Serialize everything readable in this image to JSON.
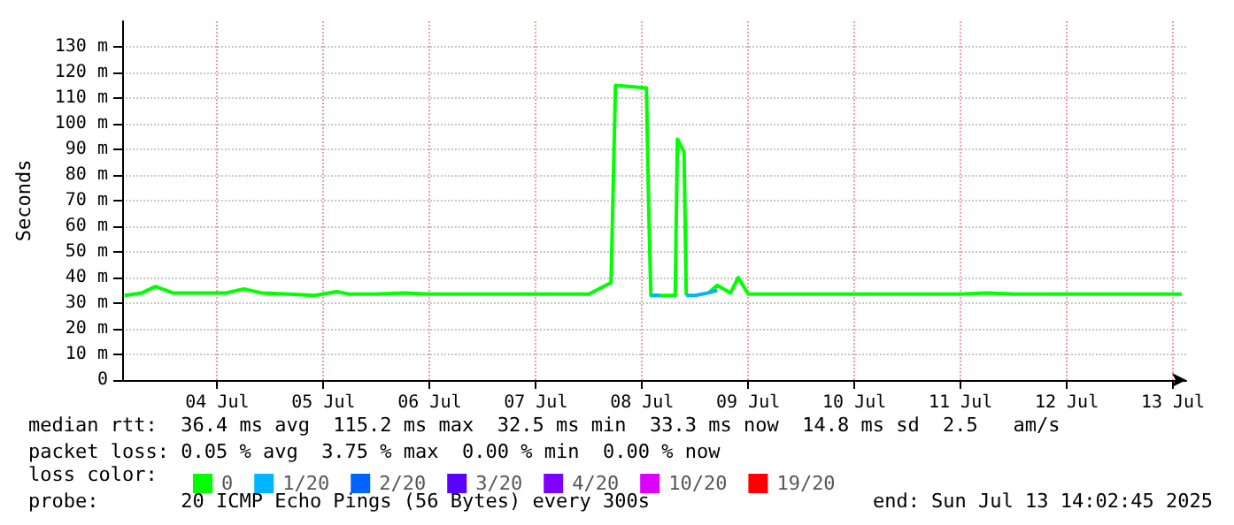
{
  "chart_data": {
    "type": "line",
    "ylabel": "Seconds",
    "legend_title": "loss color:",
    "legend": "bottom",
    "grid": true,
    "marker": "none",
    "line_style": "solid",
    "x": [
      "2025-07-03T15:00",
      "2025-07-03T19:00",
      "2025-07-03T22:00",
      "2025-07-04T02:00",
      "2025-07-04T08:00",
      "2025-07-04T14:00",
      "2025-07-04T18:00",
      "2025-07-04T22:00",
      "2025-07-05T04:00",
      "2025-07-05T10:00",
      "2025-07-05T15:00",
      "2025-07-05T18:00",
      "2025-07-06T00:00",
      "2025-07-06T06:00",
      "2025-07-06T12:00",
      "2025-07-06T18:00",
      "2025-07-07T00:00",
      "2025-07-07T06:00",
      "2025-07-07T12:00",
      "2025-07-07T18:00",
      "2025-07-08T00:00",
      "2025-07-08T05:00",
      "2025-07-08T06:00",
      "2025-07-08T13:00",
      "2025-07-08T13:30",
      "2025-07-08T14:00",
      "2025-07-08T16:00",
      "2025-07-08T19:30",
      "2025-07-08T20:00",
      "2025-07-08T21:30",
      "2025-07-08T22:00",
      "2025-07-09T00:00",
      "2025-07-09T03:00",
      "2025-07-09T05:00",
      "2025-07-09T08:00",
      "2025-07-09T09:45",
      "2025-07-09T12:00",
      "2025-07-09T18:00",
      "2025-07-10T00:00",
      "2025-07-10T06:00",
      "2025-07-10T12:00",
      "2025-07-10T18:00",
      "2025-07-11T00:00",
      "2025-07-11T06:00",
      "2025-07-11T12:00",
      "2025-07-11T18:00",
      "2025-07-12T00:00",
      "2025-07-12T06:00",
      "2025-07-12T12:00",
      "2025-07-12T18:00",
      "2025-07-13T00:00",
      "2025-07-13T06:00",
      "2025-07-13T14:00"
    ],
    "series": [
      {
        "name": "0",
        "color": "#00ff00",
        "values": [
          33,
          34,
          36.5,
          34,
          34,
          34,
          35.5,
          34,
          33.5,
          33,
          34.5,
          33.5,
          33.5,
          34,
          33.5,
          33.5,
          33.5,
          33.5,
          33.5,
          33.5,
          33.5,
          38,
          115,
          114,
          68,
          33,
          33,
          33,
          94,
          89,
          33,
          null,
          34,
          37,
          34,
          40,
          33.5,
          33.5,
          33.5,
          33.5,
          33.5,
          33.5,
          33.5,
          33.5,
          33.5,
          34,
          33.5,
          33.5,
          33.5,
          33.5,
          33.5,
          33.5,
          33.5
        ]
      },
      {
        "name": "1/20",
        "color": "#00b4ff",
        "values": [
          null,
          null,
          null,
          null,
          null,
          null,
          null,
          null,
          null,
          null,
          null,
          null,
          null,
          null,
          null,
          null,
          null,
          null,
          null,
          null,
          null,
          null,
          null,
          null,
          null,
          33,
          33,
          null,
          null,
          null,
          33,
          33,
          34,
          35,
          null,
          null,
          null,
          null,
          null,
          null,
          null,
          null,
          null,
          null,
          null,
          null,
          null,
          null,
          null,
          null,
          null,
          null,
          null
        ]
      },
      {
        "name": "2/20",
        "color": "#0064ff",
        "values": [
          null,
          null,
          null,
          null,
          null,
          null,
          null,
          null,
          null,
          null,
          null,
          null,
          null,
          null,
          null,
          null,
          null,
          null,
          null,
          null,
          null,
          null,
          null,
          null,
          null,
          null,
          null,
          null,
          null,
          null,
          null,
          null,
          null,
          null,
          null,
          null,
          null,
          null,
          null,
          null,
          null,
          null,
          null,
          null,
          null,
          null,
          null,
          null,
          null,
          null,
          null,
          null,
          null
        ]
      },
      {
        "name": "3/20",
        "color": "#5a00ff",
        "values": [
          null,
          null,
          null,
          null,
          null,
          null,
          null,
          null,
          null,
          null,
          null,
          null,
          null,
          null,
          null,
          null,
          null,
          null,
          null,
          null,
          null,
          null,
          null,
          null,
          null,
          null,
          null,
          null,
          null,
          null,
          null,
          null,
          null,
          null,
          null,
          null,
          null,
          null,
          null,
          null,
          null,
          null,
          null,
          null,
          null,
          null,
          null,
          null,
          null,
          null,
          null,
          null,
          null
        ]
      },
      {
        "name": "4/20",
        "color": "#7e00ff",
        "values": [
          null,
          null,
          null,
          null,
          null,
          null,
          null,
          null,
          null,
          null,
          null,
          null,
          null,
          null,
          null,
          null,
          null,
          null,
          null,
          null,
          null,
          null,
          null,
          null,
          null,
          null,
          null,
          null,
          null,
          null,
          null,
          null,
          null,
          null,
          null,
          null,
          null,
          null,
          null,
          null,
          null,
          null,
          null,
          null,
          null,
          null,
          null,
          null,
          null,
          null,
          null,
          null,
          null
        ]
      },
      {
        "name": "10/20",
        "color": "#dd00ff",
        "values": [
          null,
          null,
          null,
          null,
          null,
          null,
          null,
          null,
          null,
          null,
          null,
          null,
          null,
          null,
          null,
          null,
          null,
          null,
          null,
          null,
          null,
          null,
          null,
          null,
          null,
          null,
          null,
          null,
          null,
          null,
          null,
          null,
          null,
          null,
          null,
          null,
          null,
          null,
          null,
          null,
          null,
          null,
          null,
          null,
          null,
          null,
          null,
          null,
          null,
          null,
          null,
          null,
          null
        ]
      },
      {
        "name": "19/20",
        "color": "#ff0000",
        "values": [
          null,
          null,
          null,
          null,
          null,
          null,
          null,
          null,
          null,
          null,
          null,
          null,
          null,
          null,
          null,
          null,
          null,
          null,
          null,
          null,
          null,
          null,
          null,
          null,
          null,
          null,
          null,
          null,
          null,
          null,
          null,
          null,
          null,
          null,
          null,
          null,
          null,
          null,
          null,
          null,
          null,
          null,
          null,
          null,
          null,
          null,
          null,
          null,
          null,
          null,
          null,
          null,
          null
        ]
      }
    ],
    "xlim": [
      "2025-07-03T14:30",
      "2025-07-13T15:00"
    ],
    "xticks": [
      {
        "value": "2025-07-04T12:00",
        "label": "04 Jul"
      },
      {
        "value": "2025-07-05T12:00",
        "label": "05 Jul"
      },
      {
        "value": "2025-07-06T12:00",
        "label": "06 Jul"
      },
      {
        "value": "2025-07-07T12:00",
        "label": "07 Jul"
      },
      {
        "value": "2025-07-08T12:00",
        "label": "08 Jul"
      },
      {
        "value": "2025-07-09T12:00",
        "label": "09 Jul"
      },
      {
        "value": "2025-07-10T12:00",
        "label": "10 Jul"
      },
      {
        "value": "2025-07-11T12:00",
        "label": "11 Jul"
      },
      {
        "value": "2025-07-12T12:00",
        "label": "12 Jul"
      },
      {
        "value": "2025-07-13T12:00",
        "label": "13 Jul"
      }
    ],
    "ylim": [
      0,
      140
    ],
    "yticks": [
      0,
      {
        "value": 10,
        "label": "10 m"
      },
      {
        "value": 20,
        "label": "20 m"
      },
      {
        "value": 30,
        "label": "30 m"
      },
      {
        "value": 40,
        "label": "40 m"
      },
      {
        "value": 50,
        "label": "50 m"
      },
      {
        "value": 60,
        "label": "60 m"
      },
      {
        "value": 70,
        "label": "70 m"
      },
      {
        "value": 80,
        "label": "80 m"
      },
      {
        "value": 90,
        "label": "90 m"
      },
      {
        "value": 100,
        "label": "100 m"
      },
      {
        "value": 110,
        "label": "110 m"
      },
      {
        "value": 120,
        "label": "120 m"
      },
      {
        "value": 130,
        "label": "130 m"
      }
    ],
    "annotations": [
      "median rtt:  36.4 ms avg  115.2 ms max  32.5 ms min  33.3 ms now  14.8 ms sd  2.5   am/s",
      "packet loss: 0.05 % avg  3.75 % max  0.00 % min  0.00 % now",
      "probe:       20 ICMP Echo Pings (56 Bytes) every 300s",
      "end: Sun Jul 13 14:02:45 2025"
    ]
  }
}
